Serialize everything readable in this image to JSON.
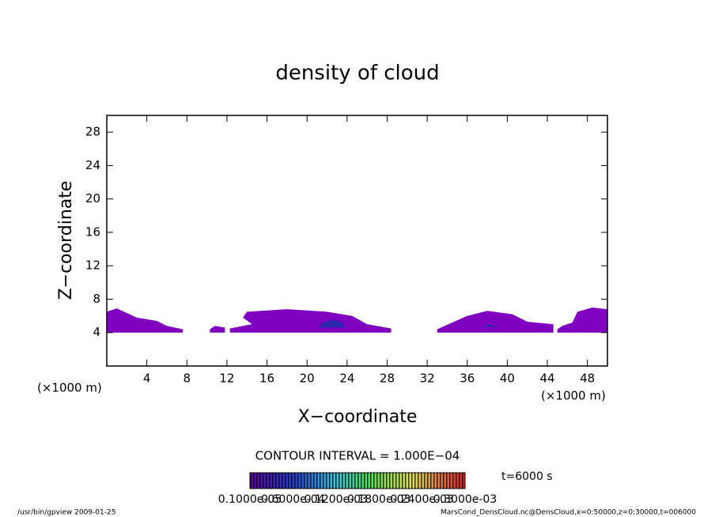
{
  "chart_data": {
    "type": "contour",
    "title": "density of cloud",
    "xlabel": "X−coordinate",
    "ylabel": "Z−coordinate",
    "x_unit": "(×1000 m)",
    "y_unit": "(×1000 m)",
    "xlim": [
      0,
      50
    ],
    "ylim": [
      0,
      30
    ],
    "xticks": [
      4,
      8,
      12,
      16,
      20,
      24,
      28,
      32,
      36,
      40,
      44,
      48
    ],
    "yticks": [
      4,
      8,
      12,
      16,
      20,
      24,
      28
    ],
    "regions": [
      {
        "color": "#8000c0",
        "x": [
          0,
          7.6,
          7.6,
          6,
          5,
          3,
          1,
          0
        ],
        "z": [
          4,
          4,
          4.4,
          4.8,
          5.4,
          5.8,
          6.9,
          6.5
        ]
      },
      {
        "color": "#8000c0",
        "x": [
          10.3,
          11.8,
          11.8,
          10.8,
          10.3
        ],
        "z": [
          4,
          4,
          4.6,
          4.8,
          4.4
        ]
      },
      {
        "color": "#8000c0",
        "x": [
          12.3,
          28.4,
          28.4,
          26,
          24.5,
          22,
          18,
          14,
          13.6,
          14.5,
          12.3
        ],
        "z": [
          4,
          4,
          4.5,
          5,
          6,
          6.5,
          6.8,
          6.5,
          5.8,
          5,
          4.5
        ]
      },
      {
        "color": "#8000c0",
        "x": [
          33,
          44.6,
          44.6,
          42,
          40.5,
          38,
          36,
          34.5,
          33
        ],
        "z": [
          4,
          4,
          5,
          5.3,
          6.2,
          6.6,
          6,
          5.2,
          4.4
        ]
      },
      {
        "color": "#8000c0",
        "x": [
          45,
          50,
          50,
          48.5,
          47,
          46.5,
          45.5,
          45
        ],
        "z": [
          4,
          4,
          6.8,
          7,
          6.5,
          5.2,
          4.8,
          4.4
        ]
      },
      {
        "color": "#2a2ab0",
        "x": [
          21.2,
          23.8,
          23.5,
          22.4,
          21.5
        ],
        "z": [
          4.6,
          4.6,
          5.3,
          5.5,
          5.1
        ]
      },
      {
        "color": "#2a2ab0",
        "x": [
          37.5,
          39,
          38.2
        ],
        "z": [
          4.7,
          4.7,
          5
        ]
      }
    ],
    "contour_interval": "CONTOUR INTERVAL = 1.000E−04",
    "time_label": "t=6000 s",
    "colorbar_labels": [
      "0.1000e-05",
      "0.6000e-04",
      "0.1200e-03",
      "0.1800e-03",
      "0.2400e-03",
      "0.3000e-03"
    ],
    "footer_left": "/usr/bin/gpview   2009-01-25",
    "footer_right": "MarsCond_DensCloud.nc@DensCloud,x=0:50000,z=0:30000,t=006000"
  }
}
